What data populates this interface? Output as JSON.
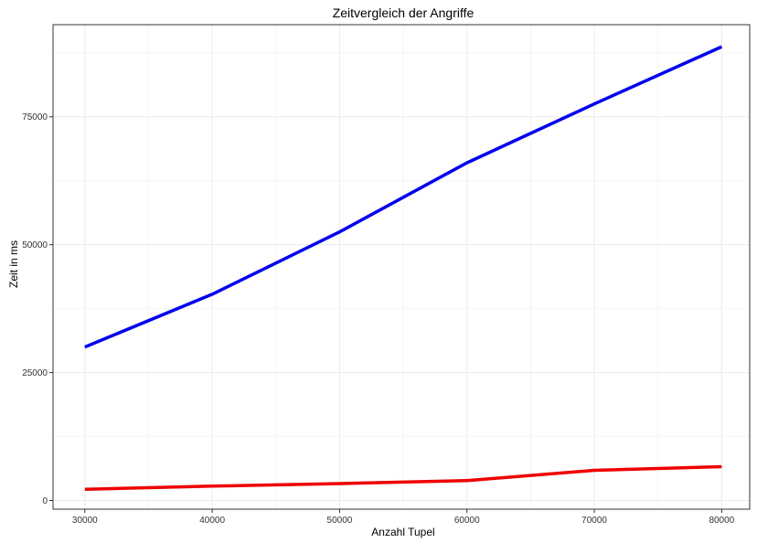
{
  "chart_data": {
    "type": "line",
    "title": "Zeitvergleich der Angriffe",
    "xlabel": "Anzahl Tupel",
    "ylabel": "Zeit in ms",
    "xlim": [
      27500,
      82200
    ],
    "ylim": [
      -1700,
      93000
    ],
    "x_ticks": [
      30000,
      40000,
      50000,
      60000,
      70000,
      80000
    ],
    "x_tick_labels": [
      "30000",
      "40000",
      "50000",
      "60000",
      "70000",
      "80000"
    ],
    "y_ticks": [
      0,
      25000,
      50000,
      75000
    ],
    "y_tick_labels": [
      "0",
      "25000",
      "50000",
      "75000"
    ],
    "grid": true,
    "legend": "none",
    "x": [
      30000,
      40000,
      50000,
      60000,
      70000,
      80000
    ],
    "series": [
      {
        "values": [
          30000,
          40300,
          52500,
          66000,
          77500,
          88700
        ],
        "color": "#0000ee"
      },
      {
        "values": [
          2200,
          2800,
          3300,
          3900,
          5900,
          6600
        ],
        "color": "#ee0000"
      }
    ]
  }
}
